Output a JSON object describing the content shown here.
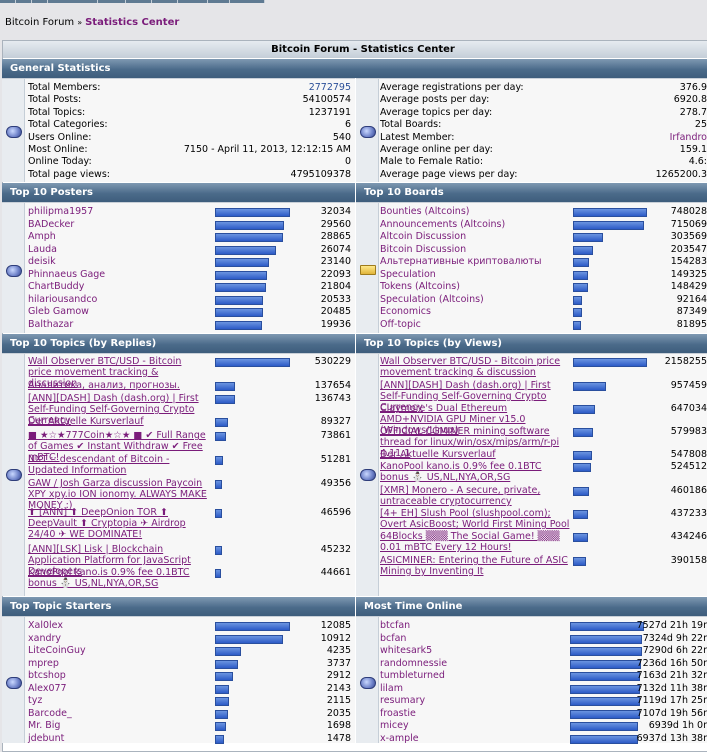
{
  "breadcrumb": {
    "forum": "Bitcoin Forum",
    "sep": "»",
    "current": "Statistics Center"
  },
  "page_title": "Bitcoin Forum - Statistics Center",
  "sections": {
    "general": "General Statistics",
    "posters": "Top 10 Posters",
    "boards": "Top 10 Boards",
    "replies": "Top 10 Topics (by Replies)",
    "views": "Top 10 Topics (by Views)",
    "starters": "Top Topic Starters",
    "online": "Most Time Online"
  },
  "general_left": [
    {
      "label": "Total Members:",
      "value": "2772795",
      "link": true
    },
    {
      "label": "Total Posts:",
      "value": "54100574"
    },
    {
      "label": "Total Topics:",
      "value": "1237191"
    },
    {
      "label": "Total Categories:",
      "value": "6"
    },
    {
      "label": "Users Online:",
      "value": "540"
    },
    {
      "label": "Most Online:",
      "value": "7150 - April 11, 2013, 12:12:15 AM"
    },
    {
      "label": "Online Today:",
      "value": "0"
    },
    {
      "label": "Total page views:",
      "value": "4795109378"
    }
  ],
  "general_right": [
    {
      "label": "Average registrations per day:",
      "value": "376.9"
    },
    {
      "label": "Average posts per day:",
      "value": "6920.8"
    },
    {
      "label": "Average topics per day:",
      "value": "278.7"
    },
    {
      "label": "Total Boards:",
      "value": "25"
    },
    {
      "label": "Latest Member:",
      "value": "Irfandro",
      "link": true
    },
    {
      "label": "Average online per day:",
      "value": "159.1"
    },
    {
      "label": "Male to Female Ratio:",
      "value": "4.6:"
    },
    {
      "label": "Average page views per day:",
      "value": "1265200.3"
    }
  ],
  "posters": [
    {
      "name": "philipma1957",
      "value": "32034",
      "pct": 100
    },
    {
      "name": "BADecker",
      "value": "29560",
      "pct": 92
    },
    {
      "name": "Amph",
      "value": "28865",
      "pct": 90
    },
    {
      "name": "Lauda",
      "value": "26074",
      "pct": 81
    },
    {
      "name": "deisik",
      "value": "23140",
      "pct": 72
    },
    {
      "name": "Phinnaeus Gage",
      "value": "22093",
      "pct": 69
    },
    {
      "name": "ChartBuddy",
      "value": "21804",
      "pct": 68
    },
    {
      "name": "hilariousandco",
      "value": "20533",
      "pct": 64
    },
    {
      "name": "Gleb Gamow",
      "value": "20485",
      "pct": 64
    },
    {
      "name": "Balthazar",
      "value": "19936",
      "pct": 62
    }
  ],
  "boards": [
    {
      "name": "Bounties (Altcoins)",
      "value": "748028",
      "pct": 100
    },
    {
      "name": "Announcements (Altcoins)",
      "value": "715069",
      "pct": 96
    },
    {
      "name": "Altcoin Discussion",
      "value": "303569",
      "pct": 41
    },
    {
      "name": "Bitcoin Discussion",
      "value": "203547",
      "pct": 27
    },
    {
      "name": "Альтернативные криптовалюты",
      "value": "154283",
      "pct": 21
    },
    {
      "name": "Speculation",
      "value": "149325",
      "pct": 20
    },
    {
      "name": "Tokens (Altcoins)",
      "value": "148429",
      "pct": 20
    },
    {
      "name": "Speculation (Altcoins)",
      "value": "92164",
      "pct": 12
    },
    {
      "name": "Economics",
      "value": "87349",
      "pct": 12
    },
    {
      "name": "Off-topic",
      "value": "81895",
      "pct": 11
    }
  ],
  "replies": [
    {
      "title": "Wall Observer BTC/USD - Bitcoin price movement tracking & discussion",
      "value": "530229",
      "pct": 100
    },
    {
      "title": "Аналитика, анализ, прогнозы.",
      "value": "137654",
      "pct": 26
    },
    {
      "title": "[ANN][DASH] Dash (dash.org) | First Self-Funding Self-Governing Crypto Currency",
      "value": "136743",
      "pct": 26
    },
    {
      "title": "Der Aktuelle Kursverlauf",
      "value": "89327",
      "pct": 17
    },
    {
      "title": "■ ★☆★777Coin★☆★ ■ ✔ Full Range of Games ✔ Instant Withdraw ✔ Free mBTC!",
      "value": "73861",
      "pct": 14
    },
    {
      "title": "NXT :: descendant of Bitcoin - Updated Information",
      "value": "51281",
      "pct": 10
    },
    {
      "title": "GAW / Josh Garza discussion Paycoin XPY xpy.io ION ionomy. ALWAYS MAKE MONEY :)",
      "value": "49356",
      "pct": 9
    },
    {
      "title": "⬆ [ANN] ⬆ DeepOnion TOR ⬆ DeepVault ⬆ Cryptopia ✈ Airdrop 24/40 ✈ WE DOMINATE!",
      "value": "46596",
      "pct": 9
    },
    {
      "title": "[ANN][LSK] Lisk | Blockchain Application Platform for JavaScript Developers",
      "value": "45232",
      "pct": 9
    },
    {
      "title": "KanoPool kano.is 0.9% fee 0.1BTC bonus ⛄ US,NL,NYA,OR,SG",
      "value": "44661",
      "pct": 8
    }
  ],
  "views": [
    {
      "title": "Wall Observer BTC/USD - Bitcoin price movement tracking & discussion",
      "value": "2158255",
      "pct": 100
    },
    {
      "title": "[ANN][DASH] Dash (dash.org) | First Self-Funding Self-Governing Crypto Currency",
      "value": "957459",
      "pct": 44
    },
    {
      "title": "Claymore's Dual Ethereum AMD+NVIDIA GPU Miner v15.0 (Windows/Linux)",
      "value": "647034",
      "pct": 30
    },
    {
      "title": "OFFICIAL CGMINER mining software thread for linux/win/osx/mips/arm/r-pi 4.11.1",
      "value": "579983",
      "pct": 27
    },
    {
      "title": "Der Aktuelle Kursverlauf",
      "value": "547808",
      "pct": 25
    },
    {
      "title": "KanoPool kano.is 0.9% fee 0.1BTC bonus ⛄ US,NL,NYA,OR,SG",
      "value": "524512",
      "pct": 24
    },
    {
      "title": "[XMR] Monero - A secure, private, untraceable cryptocurrency",
      "value": "460186",
      "pct": 21
    },
    {
      "title": "[4+ EH] Slush Pool (slushpool.com); Overt AsicBoost; World First Mining Pool",
      "value": "437233",
      "pct": 20
    },
    {
      "title": "64Blocks ▒▒▒ The Social Game! ▒▒▒ 0.01 mBTC Every 12 Hours!",
      "value": "434246",
      "pct": 20
    },
    {
      "title": "ASICMINER: Entering the Future of ASIC Mining by Inventing It",
      "value": "390158",
      "pct": 18
    }
  ],
  "starters": [
    {
      "name": "Xal0lex",
      "value": "12085",
      "pct": 100
    },
    {
      "name": "xandry",
      "value": "10912",
      "pct": 90
    },
    {
      "name": "LiteCoinGuy",
      "value": "4235",
      "pct": 35
    },
    {
      "name": "mprep",
      "value": "3737",
      "pct": 31
    },
    {
      "name": "btcshop",
      "value": "2912",
      "pct": 24
    },
    {
      "name": "Alex077",
      "value": "2143",
      "pct": 18
    },
    {
      "name": "tyz",
      "value": "2115",
      "pct": 18
    },
    {
      "name": "Barcode_",
      "value": "2035",
      "pct": 17
    },
    {
      "name": "Mr. Big",
      "value": "1698",
      "pct": 14
    },
    {
      "name": "jdebunt",
      "value": "1478",
      "pct": 12
    }
  ],
  "online": [
    {
      "name": "btcfan",
      "value": "7527d 21h 19r",
      "pct": 100
    },
    {
      "name": "bcfan",
      "value": "7324d 9h 22r",
      "pct": 97
    },
    {
      "name": "whitesark5",
      "value": "7290d 6h 22r",
      "pct": 97
    },
    {
      "name": "randomnessie",
      "value": "7236d 16h 50r",
      "pct": 96
    },
    {
      "name": "tumbleturned",
      "value": "7163d 21h 32r",
      "pct": 95
    },
    {
      "name": "lilam",
      "value": "7132d 11h 38r",
      "pct": 95
    },
    {
      "name": "resumary",
      "value": "7119d 17h 25r",
      "pct": 95
    },
    {
      "name": "froastie",
      "value": "7107d 19h 56r",
      "pct": 94
    },
    {
      "name": "micey",
      "value": "6939d 1h 0r",
      "pct": 92
    },
    {
      "name": "x-ample",
      "value": "6937d 13h 38r",
      "pct": 92
    }
  ]
}
